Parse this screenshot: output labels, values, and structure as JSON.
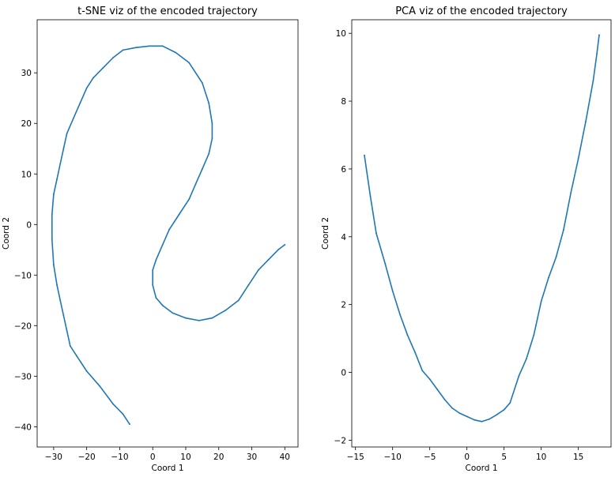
{
  "chart_data": [
    {
      "type": "line",
      "title": "t-SNE viz of the encoded trajectory",
      "xlabel": "Coord 1",
      "ylabel": "Coord 2",
      "xlim": [
        -35,
        44
      ],
      "ylim": [
        -44,
        40.5
      ],
      "xticks": [
        -30,
        -20,
        -10,
        0,
        10,
        20,
        30,
        40
      ],
      "yticks": [
        -40,
        -30,
        -20,
        -10,
        0,
        10,
        20,
        30
      ],
      "grid": false,
      "color": "#1f77b4",
      "series": [
        {
          "x": [
            -7,
            -9,
            -12,
            -16,
            -20,
            -23,
            -25,
            -26,
            -27,
            -28,
            -29,
            -30,
            -30.5,
            -30.5,
            -30,
            -29,
            -28,
            -27,
            -26,
            -24,
            -22,
            -20,
            -18,
            -15,
            -12,
            -9,
            -5,
            -1,
            3,
            7,
            11,
            15,
            17,
            18,
            18,
            17,
            15,
            13,
            11,
            8,
            5,
            3,
            1,
            0,
            0,
            1,
            3,
            6,
            10,
            14,
            18,
            22,
            26,
            29,
            32,
            35,
            38,
            40
          ],
          "y": [
            -39.5,
            -37.5,
            -35.5,
            -32,
            -29,
            -26,
            -24,
            -21,
            -18,
            -15,
            -12,
            -8,
            -3,
            2,
            6,
            9,
            12,
            15,
            18,
            21,
            24,
            27,
            29,
            31,
            33,
            34.5,
            35,
            35.3,
            35.3,
            34,
            32,
            28,
            24,
            20,
            17,
            14,
            11,
            8,
            5,
            2,
            -1,
            -4,
            -7,
            -9,
            -12,
            -14.5,
            -16,
            -17.5,
            -18.5,
            -19,
            -18.5,
            -17,
            -15,
            -12,
            -9,
            -7,
            -5,
            -4
          ]
        }
      ]
    },
    {
      "type": "line",
      "title": "PCA viz of the encoded trajectory",
      "xlabel": "Coord 1",
      "ylabel": "Coord 2",
      "xlim": [
        -15.5,
        19.4
      ],
      "ylim": [
        -2.2,
        10.4
      ],
      "xticks": [
        -15,
        -10,
        -5,
        0,
        5,
        10,
        15
      ],
      "yticks": [
        -2,
        0,
        2,
        4,
        6,
        8,
        10
      ],
      "grid": false,
      "color": "#1f77b4",
      "series": [
        {
          "x": [
            -13.8,
            -13,
            -12.2,
            -11,
            -10,
            -9,
            -8,
            -7,
            -6,
            -5,
            -4,
            -3,
            -2,
            -1,
            0,
            1,
            2,
            3,
            4,
            5,
            5.8,
            7,
            8,
            9,
            10,
            11,
            12,
            13,
            14,
            15,
            16,
            17,
            17.5,
            17.8
          ],
          "y": [
            6.4,
            5.2,
            4.1,
            3.2,
            2.4,
            1.7,
            1.1,
            0.6,
            0.05,
            -0.2,
            -0.5,
            -0.8,
            -1.05,
            -1.2,
            -1.3,
            -1.4,
            -1.45,
            -1.38,
            -1.25,
            -1.1,
            -0.9,
            -0.1,
            0.4,
            1.1,
            2.1,
            2.8,
            3.4,
            4.2,
            5.3,
            6.3,
            7.4,
            8.6,
            9.4,
            9.95
          ]
        }
      ]
    }
  ]
}
